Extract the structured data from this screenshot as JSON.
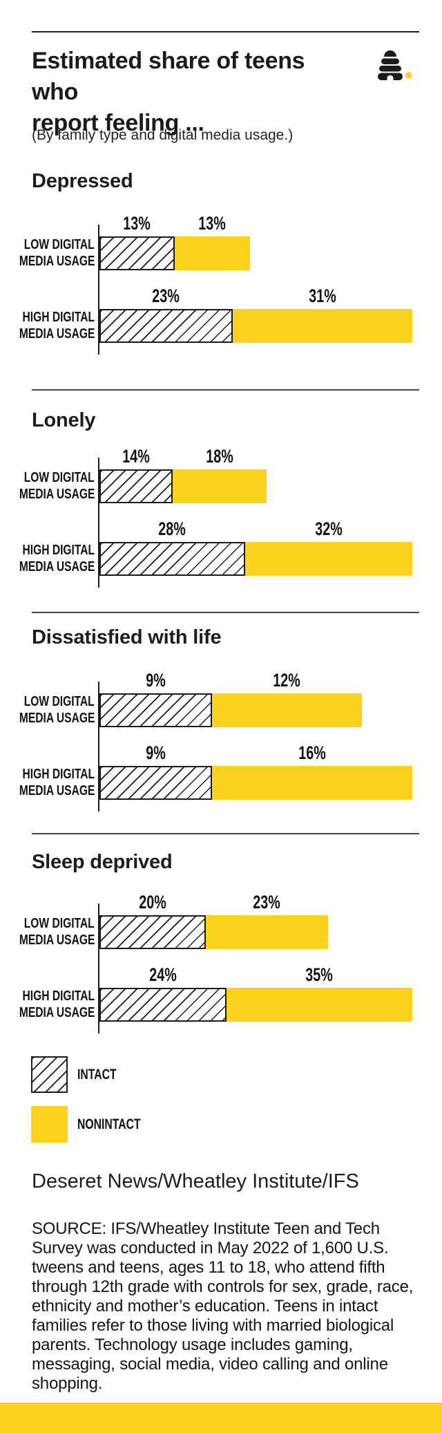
{
  "header": {
    "title_line1": "Estimated share of teens who",
    "title_line2": "report feeling ...",
    "subtitle": "(By family type and digital media usage.)"
  },
  "logo": {
    "name": "beehive-logo",
    "ink_color": "#1b1b1b",
    "dot_color": "#FCD21C"
  },
  "colors": {
    "accent_yellow": "#FCD21C",
    "ink": "#1b1b1b"
  },
  "legend": {
    "items": [
      {
        "label": "INTACT",
        "style": "hatched"
      },
      {
        "label": "NONINTACT",
        "style": "solid"
      }
    ]
  },
  "credit": "Deseret News/Wheatley Institute/IFS",
  "source": "SOURCE: IFS/Wheatley Institute Teen and Tech Survey was conducted in May 2022 of 1,600 U.S. tweens and teens, ages 11 to 18, who attend fifth through 12th grade with controls for sex, grade, race, ethnicity and mother’s education. Teens in intact families refer to those living with married biological parents. Technology usage includes gaming, messaging, social media, video calling and online shopping.",
  "chart_data": {
    "type": "bar",
    "orientation": "horizontal",
    "stacked": true,
    "unit": "%",
    "series_names": [
      "INTACT",
      "NONINTACT"
    ],
    "row_scale_note": "each section scaled so the HIGH bar total spans full plot width",
    "sections": [
      {
        "title": "Depressed",
        "rows": [
          {
            "label_line1": "LOW DIGITAL",
            "label_line2": "MEDIA USAGE",
            "intact": 13,
            "nonintact": 13
          },
          {
            "label_line1": "HIGH DIGITAL",
            "label_line2": "MEDIA USAGE",
            "intact": 23,
            "nonintact": 31
          }
        ]
      },
      {
        "title": "Lonely",
        "rows": [
          {
            "label_line1": "LOW DIGITAL",
            "label_line2": "MEDIA USAGE",
            "intact": 14,
            "nonintact": 18
          },
          {
            "label_line1": "HIGH DIGITAL",
            "label_line2": "MEDIA USAGE",
            "intact": 28,
            "nonintact": 32
          }
        ]
      },
      {
        "title": "Dissatisfied with life",
        "rows": [
          {
            "label_line1": "LOW DIGITAL",
            "label_line2": "MEDIA USAGE",
            "intact": 9,
            "nonintact": 12
          },
          {
            "label_line1": "HIGH DIGITAL",
            "label_line2": "MEDIA USAGE",
            "intact": 9,
            "nonintact": 16
          }
        ]
      },
      {
        "title": "Sleep deprived",
        "rows": [
          {
            "label_line1": "LOW DIGITAL",
            "label_line2": "MEDIA USAGE",
            "intact": 20,
            "nonintact": 23
          },
          {
            "label_line1": "HIGH DIGITAL",
            "label_line2": "MEDIA USAGE",
            "intact": 24,
            "nonintact": 35
          }
        ]
      }
    ]
  }
}
